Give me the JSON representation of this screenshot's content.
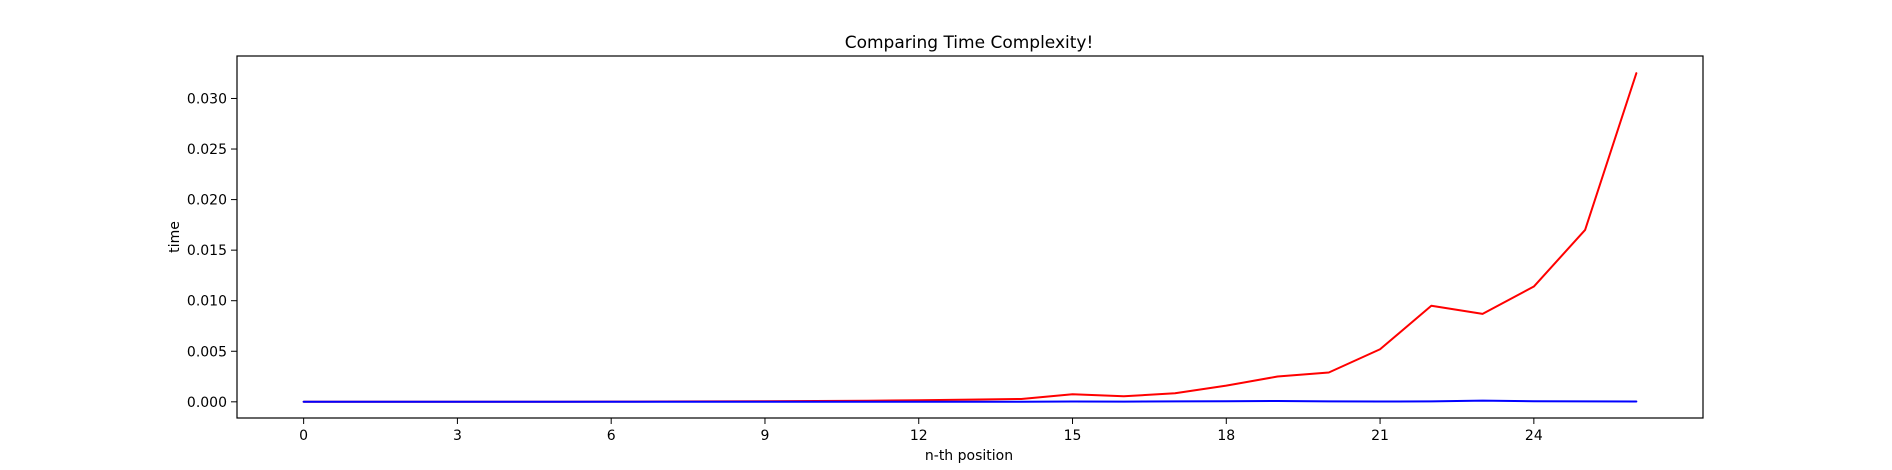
{
  "chart_data": {
    "type": "line",
    "title": "Comparing Time Complexity!",
    "xlabel": "n-th position",
    "ylabel": "time",
    "x": [
      0,
      1,
      2,
      3,
      4,
      5,
      6,
      7,
      8,
      9,
      10,
      11,
      12,
      13,
      14,
      15,
      16,
      17,
      18,
      19,
      20,
      21,
      22,
      23,
      24,
      25,
      26
    ],
    "xlim": [
      -1.3,
      27.3
    ],
    "ylim": [
      -0.0016,
      0.0342
    ],
    "xticks": [
      0,
      3,
      6,
      9,
      12,
      15,
      18,
      21,
      24
    ],
    "xtick_labels": [
      "0",
      "3",
      "6",
      "9",
      "12",
      "15",
      "18",
      "21",
      "24"
    ],
    "yticks": [
      0.0,
      0.005,
      0.01,
      0.015,
      0.02,
      0.025,
      0.03
    ],
    "ytick_labels": [
      "0.000",
      "0.005",
      "0.010",
      "0.015",
      "0.020",
      "0.025",
      "0.030"
    ],
    "grid": false,
    "legend": false,
    "series": [
      {
        "color": "#ff0000",
        "values": [
          2e-06,
          3e-06,
          4e-06,
          6e-06,
          8e-06,
          1.2e-05,
          1.8e-05,
          2.8e-05,
          4e-05,
          5.5e-05,
          8e-05,
          0.00011,
          0.00015,
          0.00022,
          0.00028,
          0.00075,
          0.00055,
          0.00085,
          0.0016,
          0.0025,
          0.0029,
          0.0052,
          0.0095,
          0.0087,
          0.0114,
          0.017,
          0.0325
        ]
      },
      {
        "color": "#0000ff",
        "values": [
          1e-05,
          1e-05,
          1e-05,
          1e-05,
          1e-05,
          1e-05,
          1e-05,
          1e-05,
          1e-05,
          1e-05,
          1e-05,
          1e-05,
          1e-05,
          1e-05,
          1e-05,
          3e-05,
          2e-05,
          4e-05,
          6e-05,
          8e-05,
          5e-05,
          3e-05,
          5e-05,
          0.00012,
          6e-05,
          4e-05,
          3e-05
        ]
      }
    ]
  }
}
